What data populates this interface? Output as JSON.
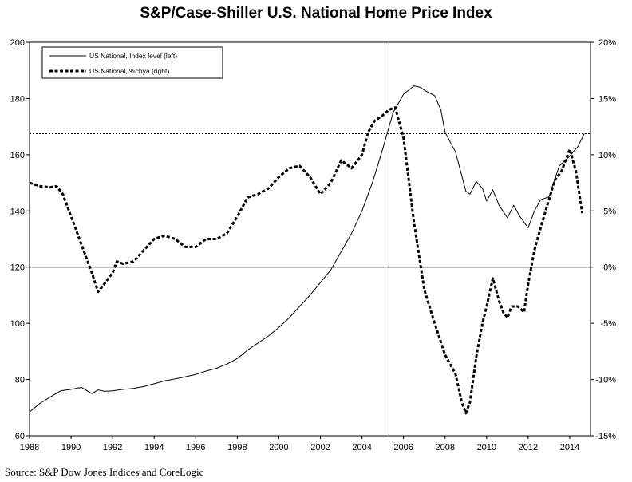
{
  "chart_data": {
    "type": "line",
    "title": "S&P/Case-Shiller U.S. National Home Price Index",
    "source": "Source: S&P Dow Jones Indices and CoreLogic",
    "legend": {
      "placement": "top-left",
      "entries": [
        "US National, Index level (left)",
        "US National, %chya (right)"
      ]
    },
    "x_ticks": [
      "1988",
      "1990",
      "1992",
      "1994",
      "1996",
      "1998",
      "2000",
      "2002",
      "2004",
      "2006",
      "2008",
      "2010",
      "2012",
      "2014"
    ],
    "x_range": [
      1988,
      2015
    ],
    "y_left": {
      "range": [
        60,
        200
      ],
      "ticks": [
        "60",
        "80",
        "100",
        "120",
        "140",
        "160",
        "180",
        "200"
      ]
    },
    "y_right": {
      "range": [
        -15,
        20
      ],
      "ticks": [
        "-15%",
        "-10%",
        "-5%",
        "0%",
        "5%",
        "10%",
        "15%",
        "20%"
      ]
    },
    "grid": false,
    "reference_lines": {
      "horizontal_right_pct": 0,
      "horizontal_left_dotted": 167.5,
      "vertical_year": 2005.3
    },
    "series": [
      {
        "name": "US National, Index level (left)",
        "axis": "left",
        "style": "solid",
        "x": [
          1988.0,
          1988.5,
          1989.0,
          1989.5,
          1990.0,
          1990.5,
          1991.0,
          1991.3,
          1991.6,
          1992.0,
          1992.5,
          1993.0,
          1993.5,
          1994.0,
          1994.5,
          1995.0,
          1995.5,
          1996.0,
          1996.5,
          1997.0,
          1997.5,
          1998.0,
          1998.5,
          1999.0,
          1999.5,
          2000.0,
          2000.5,
          2001.0,
          2001.5,
          2002.0,
          2002.5,
          2003.0,
          2003.5,
          2004.0,
          2004.5,
          2005.0,
          2005.5,
          2006.0,
          2006.5,
          2006.8,
          2007.0,
          2007.5,
          2007.8,
          2008.0,
          2008.5,
          2009.0,
          2009.2,
          2009.5,
          2009.8,
          2010.0,
          2010.3,
          2010.6,
          2011.0,
          2011.3,
          2011.6,
          2012.0,
          2012.3,
          2012.6,
          2013.0,
          2013.5,
          2014.0,
          2014.4,
          2014.7
        ],
        "values": [
          68.5,
          71.5,
          73.8,
          76.0,
          76.5,
          77.2,
          75.0,
          76.3,
          75.8,
          76.0,
          76.5,
          76.8,
          77.5,
          78.5,
          79.5,
          80.2,
          81.0,
          81.8,
          83.0,
          84.0,
          85.5,
          87.5,
          90.5,
          93.0,
          95.5,
          98.5,
          102.0,
          106.0,
          110.0,
          114.5,
          119.0,
          125.5,
          132.0,
          140.0,
          150.0,
          162.0,
          175.0,
          181.5,
          184.5,
          184.0,
          183.0,
          181.0,
          176.0,
          168.0,
          161.0,
          147.0,
          146.0,
          150.5,
          148.0,
          143.5,
          147.5,
          142.0,
          137.5,
          142.0,
          138.0,
          134.0,
          140.0,
          144.0,
          145.0,
          156.0,
          159.5,
          163.0,
          167.5
        ]
      },
      {
        "name": "US National, %chya (right)",
        "axis": "right",
        "style": "dotted",
        "x": [
          1988.0,
          1988.5,
          1989.0,
          1989.3,
          1989.6,
          1990.0,
          1990.5,
          1991.0,
          1991.3,
          1991.6,
          1992.0,
          1992.2,
          1992.5,
          1993.0,
          1993.5,
          1994.0,
          1994.5,
          1995.0,
          1995.5,
          1996.0,
          1996.5,
          1997.0,
          1997.5,
          1998.0,
          1998.5,
          1999.0,
          1999.5,
          2000.0,
          2000.5,
          2001.0,
          2001.5,
          2002.0,
          2002.5,
          2003.0,
          2003.5,
          2004.0,
          2004.3,
          2004.6,
          2005.0,
          2005.3,
          2005.6,
          2006.0,
          2006.5,
          2007.0,
          2007.5,
          2008.0,
          2008.5,
          2008.8,
          2009.0,
          2009.2,
          2009.5,
          2009.8,
          2010.0,
          2010.3,
          2010.6,
          2010.8,
          2011.0,
          2011.2,
          2011.5,
          2011.8,
          2012.0,
          2012.3,
          2012.6,
          2013.0,
          2013.3,
          2013.6,
          2014.0,
          2014.3,
          2014.6
        ],
        "values": [
          7.5,
          7.2,
          7.1,
          7.2,
          6.5,
          4.5,
          2.0,
          -0.5,
          -2.2,
          -1.5,
          -0.5,
          0.5,
          0.3,
          0.5,
          1.5,
          2.5,
          2.8,
          2.5,
          1.8,
          1.8,
          2.5,
          2.5,
          3.0,
          4.5,
          6.2,
          6.5,
          7.0,
          8.0,
          8.8,
          9.0,
          8.0,
          6.5,
          7.5,
          9.5,
          8.8,
          10.0,
          12.0,
          13.0,
          13.5,
          14.0,
          14.2,
          11.5,
          4.0,
          -2.0,
          -5.0,
          -7.8,
          -9.5,
          -12.0,
          -13.0,
          -12.0,
          -8.0,
          -5.0,
          -3.5,
          -1.0,
          -3.0,
          -4.0,
          -4.5,
          -3.5,
          -3.5,
          -4.0,
          -1.5,
          1.5,
          3.5,
          6.0,
          7.8,
          8.5,
          10.5,
          8.5,
          4.8
        ]
      }
    ]
  }
}
